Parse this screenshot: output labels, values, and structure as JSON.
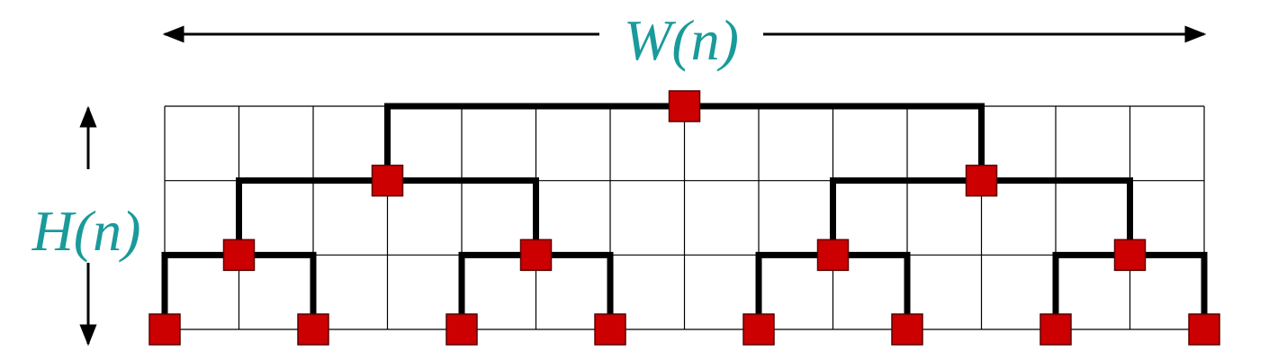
{
  "labels": {
    "width": "W(n)",
    "height": "H(n)"
  },
  "grid": {
    "columns": 14,
    "rows": 3
  },
  "tree": {
    "levels": 4,
    "leaf_columns": [
      0,
      2,
      4,
      6,
      8,
      10,
      12,
      14
    ]
  },
  "colors": {
    "label": "#1a9a9a",
    "node_fill": "#cc0000",
    "node_stroke": "#5a0000",
    "edge": "#000000",
    "grid_line": "#000000",
    "arrow": "#000000"
  }
}
